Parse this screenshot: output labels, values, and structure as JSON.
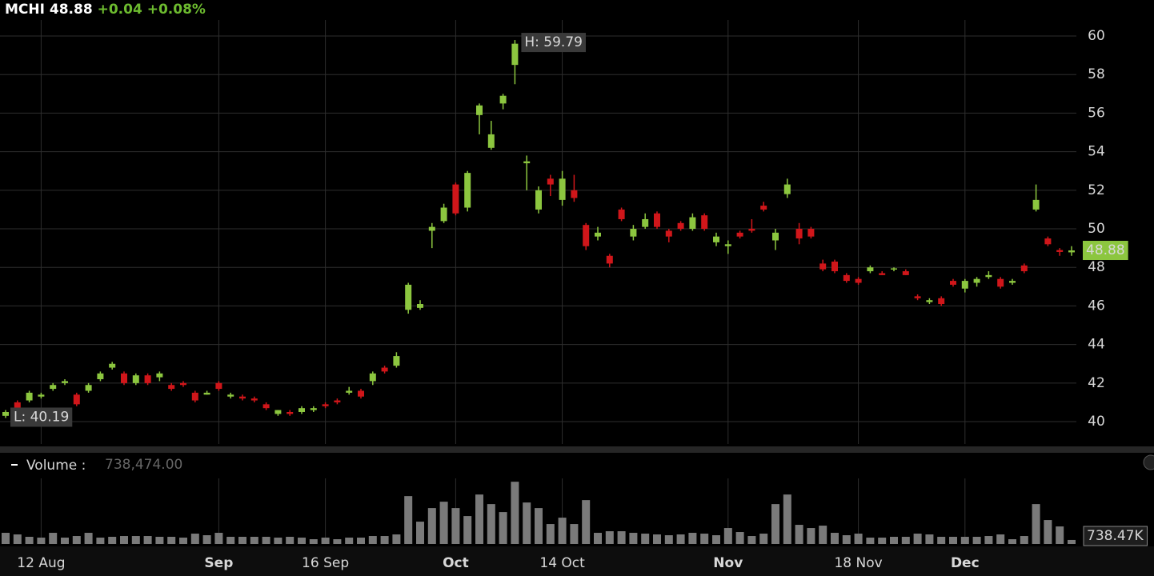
{
  "chart_data": {
    "type": "candlestick",
    "header": {
      "symbol": "MCHI",
      "last": "48.88",
      "change": "+0.04",
      "change_pct": "+0.08%"
    },
    "categories": [
      null,
      null,
      null,
      "12 Aug",
      null,
      null,
      null,
      null,
      null,
      null,
      null,
      null,
      null,
      null,
      null,
      null,
      null,
      null,
      "Sep",
      null,
      null,
      null,
      null,
      null,
      null,
      null,
      null,
      "16 Sep",
      null,
      null,
      null,
      null,
      null,
      null,
      null,
      null,
      null,
      null,
      "Oct",
      null,
      null,
      null,
      null,
      null,
      null,
      null,
      null,
      "14 Oct",
      null,
      null,
      null,
      null,
      null,
      null,
      null,
      null,
      null,
      null,
      null,
      null,
      null,
      "Nov",
      null,
      null,
      null,
      null,
      null,
      null,
      null,
      null,
      null,
      null,
      "18 Nov",
      null,
      null,
      null,
      null,
      null,
      null,
      null,
      null,
      "Dec",
      null,
      null,
      null,
      null,
      null,
      null,
      null,
      null,
      null
    ],
    "open": [
      40.3,
      41.0,
      41.1,
      41.3,
      41.7,
      42.0,
      41.4,
      41.6,
      42.2,
      42.8,
      42.5,
      42.0,
      42.4,
      42.3,
      41.9,
      42.0,
      41.5,
      41.4,
      42.0,
      41.3,
      41.3,
      41.2,
      40.9,
      40.4,
      40.5,
      40.5,
      40.6,
      40.9,
      41.1,
      41.5,
      41.6,
      42.1,
      42.8,
      42.9,
      45.8,
      45.9,
      49.9,
      50.4,
      52.3,
      51.1,
      55.9,
      54.2,
      56.5,
      58.5,
      53.4,
      51.0,
      52.6,
      51.5,
      52.0,
      50.2,
      49.6,
      48.6,
      51.0,
      49.6,
      50.1,
      50.8,
      49.9,
      50.3,
      50.0,
      50.7,
      49.3,
      49.1,
      49.8,
      50.0,
      51.2,
      49.4,
      51.8,
      50.0,
      50.0,
      48.2,
      48.3,
      47.6,
      47.4,
      47.8,
      47.7,
      47.9,
      47.8,
      46.5,
      46.2,
      46.4,
      47.3,
      46.9,
      47.2,
      47.5,
      47.4,
      47.2,
      48.1,
      51.0,
      49.5,
      48.9,
      48.78
    ],
    "high": [
      40.6,
      41.1,
      41.6,
      41.5,
      42.0,
      42.2,
      41.5,
      42.0,
      42.6,
      43.1,
      42.6,
      42.5,
      42.5,
      42.6,
      42.0,
      42.1,
      41.6,
      41.6,
      42.1,
      41.5,
      41.4,
      41.3,
      41.0,
      40.6,
      40.6,
      40.8,
      40.8,
      41.0,
      41.2,
      41.8,
      41.7,
      42.6,
      42.9,
      43.6,
      47.2,
      46.3,
      50.3,
      51.3,
      52.4,
      53.0,
      56.5,
      55.6,
      57.0,
      59.79,
      53.8,
      52.2,
      52.8,
      53.0,
      52.8,
      50.3,
      50.1,
      48.7,
      51.1,
      50.2,
      50.8,
      50.9,
      50.0,
      50.4,
      50.8,
      50.8,
      49.8,
      49.4,
      49.9,
      50.5,
      51.4,
      50.0,
      52.6,
      50.3,
      50.1,
      48.4,
      48.4,
      47.7,
      47.5,
      48.1,
      47.8,
      48.0,
      47.9,
      46.6,
      46.4,
      46.5,
      47.4,
      47.4,
      47.5,
      47.8,
      47.5,
      47.4,
      48.2,
      52.3,
      49.6,
      49.0,
      49.1
    ],
    "low": [
      40.19,
      40.5,
      41.0,
      41.2,
      41.6,
      41.9,
      40.8,
      41.5,
      42.1,
      42.7,
      41.9,
      41.9,
      41.9,
      42.1,
      41.6,
      41.8,
      41.0,
      41.4,
      41.6,
      41.2,
      41.1,
      41.0,
      40.6,
      40.3,
      40.3,
      40.4,
      40.5,
      40.7,
      40.9,
      41.4,
      41.2,
      41.9,
      42.5,
      42.8,
      45.6,
      45.8,
      49.0,
      50.3,
      50.7,
      50.9,
      54.9,
      54.1,
      56.2,
      57.5,
      52.0,
      50.8,
      51.7,
      51.2,
      51.4,
      48.9,
      49.4,
      48.0,
      50.4,
      49.4,
      50.0,
      50.0,
      49.3,
      49.9,
      49.9,
      49.9,
      49.1,
      48.7,
      49.5,
      49.8,
      50.9,
      48.9,
      51.6,
      49.2,
      49.5,
      47.8,
      47.7,
      47.2,
      47.1,
      47.7,
      47.6,
      47.8,
      47.6,
      46.3,
      46.1,
      46.0,
      47.0,
      46.7,
      47.0,
      47.4,
      46.9,
      47.1,
      47.7,
      50.9,
      49.1,
      48.6,
      48.6
    ],
    "close": [
      40.5,
      40.7,
      41.5,
      41.4,
      41.9,
      42.1,
      40.9,
      41.9,
      42.5,
      43.0,
      42.0,
      42.4,
      42.0,
      42.5,
      41.7,
      41.9,
      41.1,
      41.5,
      41.7,
      41.4,
      41.2,
      41.1,
      40.7,
      40.6,
      40.4,
      40.7,
      40.7,
      40.8,
      41.0,
      41.6,
      41.3,
      42.5,
      42.6,
      43.4,
      47.1,
      46.1,
      50.1,
      51.1,
      50.8,
      52.9,
      56.4,
      54.9,
      56.9,
      59.6,
      53.5,
      52.0,
      52.3,
      52.6,
      51.6,
      49.1,
      49.8,
      48.2,
      50.5,
      50.0,
      50.5,
      50.1,
      49.6,
      50.0,
      50.6,
      50.0,
      49.6,
      49.2,
      49.6,
      49.9,
      51.0,
      49.8,
      52.3,
      49.5,
      49.6,
      47.9,
      47.8,
      47.3,
      47.2,
      48.0,
      47.6,
      47.95,
      47.6,
      46.4,
      46.3,
      46.1,
      47.1,
      47.3,
      47.4,
      47.6,
      47.0,
      47.3,
      47.8,
      51.5,
      49.2,
      48.8,
      48.88
    ],
    "up_color": "#8cc63f",
    "down_color": "#d0161a",
    "ylim": [
      38.84,
      60.83
    ],
    "yticks": [
      40,
      42,
      44,
      46,
      48,
      50,
      52,
      54,
      56,
      58,
      60
    ],
    "grid": true,
    "annotations": {
      "high": "H: 59.79",
      "low": "L: 40.19",
      "last": "48.88"
    },
    "volume": {
      "label": "Volume :",
      "value_label": "738,474.00",
      "axis_label": "738.47K",
      "color": "#7a7a7a",
      "ylim": [
        0,
        12000000
      ],
      "values": [
        2044000,
        1752000,
        1314000,
        1168000,
        2044000,
        1168000,
        1460000,
        2044000,
        1168000,
        1314000,
        1460000,
        1460000,
        1460000,
        1314000,
        1314000,
        1168000,
        1898000,
        1606000,
        2044000,
        1314000,
        1314000,
        1314000,
        1314000,
        1168000,
        1314000,
        1168000,
        876000,
        1168000,
        876000,
        1168000,
        1168000,
        1460000,
        1460000,
        1752000,
        8760000,
        4088000,
        6570000,
        7738000,
        6570000,
        5110000,
        9052000,
        7300000,
        5840000,
        11388000,
        7592000,
        6570000,
        3650000,
        4818000,
        3650000,
        8030000,
        2044000,
        2336000,
        2336000,
        2044000,
        1898000,
        1752000,
        1606000,
        1752000,
        2044000,
        1898000,
        1606000,
        2920000,
        2190000,
        1460000,
        1898000,
        7300000,
        9052000,
        3504000,
        2920000,
        3358000,
        2044000,
        1606000,
        1898000,
        1168000,
        1168000,
        1314000,
        1314000,
        1898000,
        1752000,
        1314000,
        1314000,
        1314000,
        1314000,
        1460000,
        1752000,
        876000,
        1460000,
        7300000,
        4380000,
        3212000,
        738474
      ]
    }
  }
}
